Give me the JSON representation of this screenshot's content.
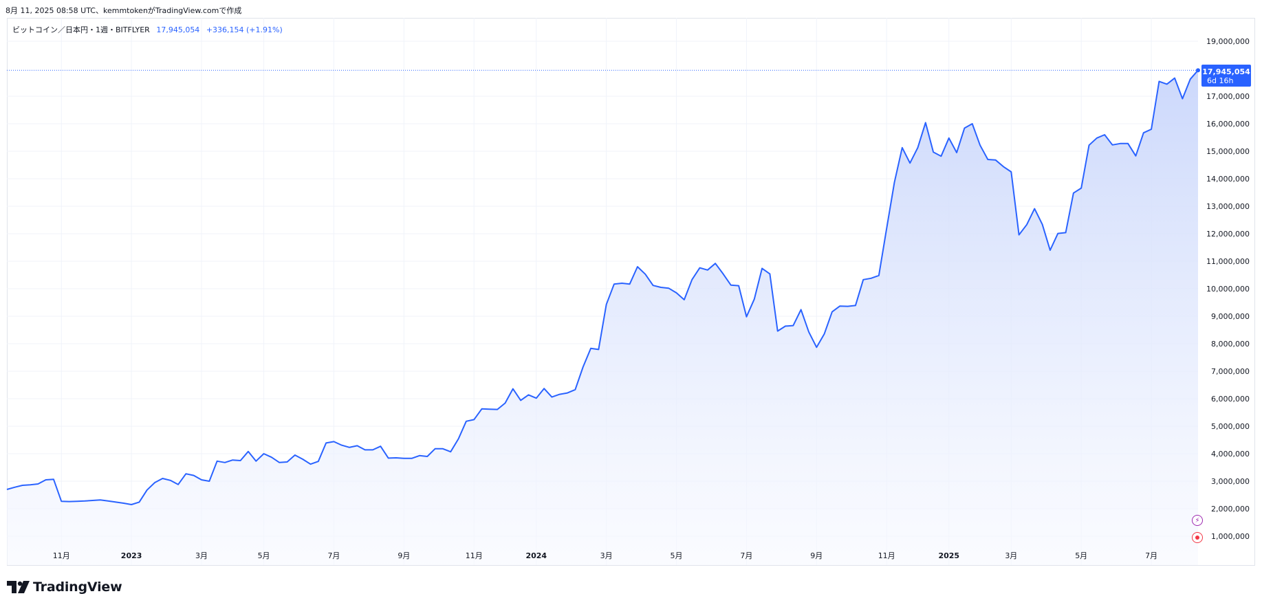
{
  "header": {
    "caption": "8月 11, 2025 08:58 UTC、kemmtokenがTradingView.comで作成"
  },
  "legend": {
    "symbol": "ビットコイン／日本円・1週・BITFLYER",
    "last_value": "17,945,054",
    "change": "+336,154 (+1.91%)"
  },
  "price_label": {
    "value": "17,945,054",
    "countdown": "6d 16h"
  },
  "footer": {
    "brand": "TradingView"
  },
  "colors": {
    "line": "#2962ff",
    "area_top": "#c9d6fb",
    "area_bottom": "#f7f9ff",
    "grid": "#f0f3fa",
    "label_bg": "#2962ff"
  },
  "chart_data": {
    "type": "area",
    "title": "",
    "xlabel": "",
    "ylabel": "",
    "ylim": [
      0,
      20200000
    ],
    "grid": true,
    "y_ticks": [
      {
        "value": 1000000,
        "label": "1,000,000"
      },
      {
        "value": 2000000,
        "label": "2,000,000"
      },
      {
        "value": 3000000,
        "label": "3,000,000"
      },
      {
        "value": 4000000,
        "label": "4,000,000"
      },
      {
        "value": 5000000,
        "label": "5,000,000"
      },
      {
        "value": 6000000,
        "label": "6,000,000"
      },
      {
        "value": 7000000,
        "label": "7,000,000"
      },
      {
        "value": 8000000,
        "label": "8,000,000"
      },
      {
        "value": 9000000,
        "label": "9,000,000"
      },
      {
        "value": 10000000,
        "label": "10,000,000"
      },
      {
        "value": 11000000,
        "label": "11,000,000"
      },
      {
        "value": 12000000,
        "label": "12,000,000"
      },
      {
        "value": 13000000,
        "label": "13,000,000"
      },
      {
        "value": 14000000,
        "label": "14,000,000"
      },
      {
        "value": 15000000,
        "label": "15,000,000"
      },
      {
        "value": 16000000,
        "label": "16,000,000"
      },
      {
        "value": 17000000,
        "label": "17,000,000"
      },
      {
        "value": 19000000,
        "label": "19,000,000"
      }
    ],
    "x_ticks": [
      {
        "week": 7,
        "label": "11月",
        "bold": false
      },
      {
        "week": 16,
        "label": "2023",
        "bold": true
      },
      {
        "week": 25,
        "label": "3月",
        "bold": false
      },
      {
        "week": 33,
        "label": "5月",
        "bold": false
      },
      {
        "week": 42,
        "label": "7月",
        "bold": false
      },
      {
        "week": 51,
        "label": "9月",
        "bold": false
      },
      {
        "week": 60,
        "label": "11月",
        "bold": false
      },
      {
        "week": 68,
        "label": "2024",
        "bold": true
      },
      {
        "week": 77,
        "label": "3月",
        "bold": false
      },
      {
        "week": 86,
        "label": "5月",
        "bold": false
      },
      {
        "week": 95,
        "label": "7月",
        "bold": false
      },
      {
        "week": 104,
        "label": "9月",
        "bold": false
      },
      {
        "week": 113,
        "label": "11月",
        "bold": false
      },
      {
        "week": 121,
        "label": "2025",
        "bold": true
      },
      {
        "week": 129,
        "label": "3月",
        "bold": false
      },
      {
        "week": 138,
        "label": "5月",
        "bold": false
      },
      {
        "week": 147,
        "label": "7月",
        "bold": false
      }
    ],
    "series": [
      {
        "values": [
          2700000,
          2780000,
          2850000,
          2870000,
          2900000,
          3050000,
          3070000,
          2270000,
          2260000,
          2270000,
          2280000,
          2300000,
          2320000,
          2280000,
          2240000,
          2200000,
          2150000,
          2240000,
          2680000,
          2950000,
          3100000,
          3030000,
          2880000,
          3270000,
          3210000,
          3050000,
          3000000,
          3730000,
          3680000,
          3770000,
          3750000,
          4080000,
          3730000,
          4000000,
          3870000,
          3680000,
          3700000,
          3950000,
          3800000,
          3620000,
          3720000,
          4390000,
          4440000,
          4310000,
          4230000,
          4290000,
          4140000,
          4140000,
          4270000,
          3840000,
          3850000,
          3830000,
          3830000,
          3930000,
          3900000,
          4180000,
          4180000,
          4070000,
          4540000,
          5180000,
          5240000,
          5630000,
          5620000,
          5610000,
          5840000,
          6360000,
          5940000,
          6140000,
          6020000,
          6370000,
          6060000,
          6160000,
          6210000,
          6330000,
          7150000,
          7830000,
          7790000,
          9430000,
          10170000,
          10200000,
          10170000,
          10800000,
          10530000,
          10120000,
          10050000,
          10020000,
          9850000,
          9600000,
          10330000,
          10760000,
          10680000,
          10920000,
          10540000,
          10130000,
          10110000,
          8980000,
          9620000,
          10740000,
          10540000,
          8460000,
          8640000,
          8660000,
          9240000,
          8430000,
          7870000,
          8360000,
          9160000,
          9370000,
          9360000,
          9390000,
          10330000,
          10380000,
          10480000,
          12190000,
          13870000,
          15130000,
          14570000,
          15130000,
          16040000,
          14970000,
          14820000,
          15480000,
          14950000,
          15840000,
          16000000,
          15220000,
          14700000,
          14680000,
          14440000,
          14250000,
          11960000,
          12330000,
          12910000,
          12340000,
          11400000,
          12010000,
          12040000,
          13480000,
          13660000,
          15220000,
          15480000,
          15600000,
          15230000,
          15280000,
          15280000,
          14830000,
          15670000,
          15800000,
          17540000,
          17440000,
          17660000,
          16910000,
          17620000,
          17945054
        ]
      }
    ]
  }
}
